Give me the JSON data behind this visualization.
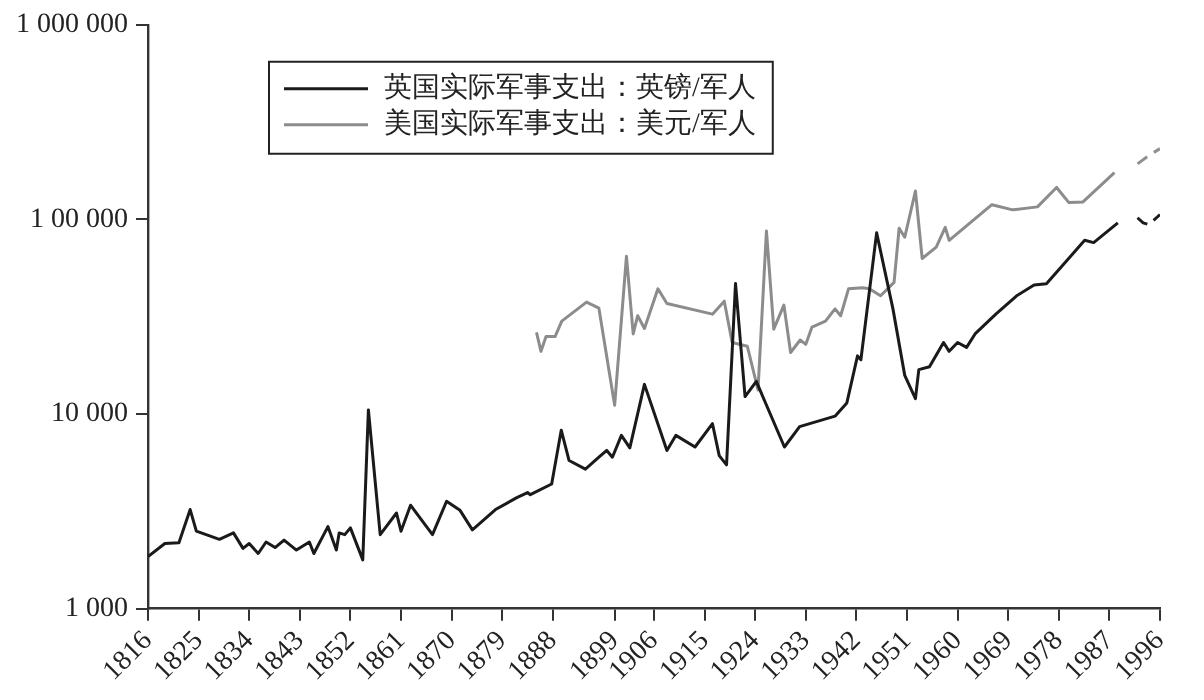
{
  "chart_data": {
    "type": "line",
    "log": "y",
    "grid": false,
    "legend": "top left",
    "marker": "none",
    "line_style": "solid",
    "xlim": [
      1816,
      1996
    ],
    "xticks": [
      1816,
      1825,
      1834,
      1843,
      1852,
      1861,
      1870,
      1879,
      1888,
      1899,
      1906,
      1915,
      1924,
      1933,
      1942,
      1951,
      1960,
      1969,
      1978,
      1987,
      1996
    ],
    "ylim": [
      1000,
      1000000
    ],
    "yticks": [
      {
        "value": 1000,
        "label": "1 000"
      },
      {
        "value": 10000,
        "label": "10 000"
      },
      {
        "value": 100000,
        "label": "1 00 000"
      },
      {
        "value": 1000000,
        "label": "1 000 000"
      }
    ],
    "series": [
      {
        "name": "英国实际军事支出：英镑/军人",
        "color": "#1a1a1a",
        "x": [
          1816,
          1819,
          1821.5,
          1823.5,
          1824.6,
          1828.7,
          1831.2,
          1832.9,
          1834,
          1835.6,
          1837,
          1838.6,
          1840.2,
          1842.4,
          1844.7,
          1845.5,
          1848,
          1849.5,
          1850,
          1851,
          1852,
          1854.2,
          1855.2,
          1857.3,
          1860.2,
          1861,
          1862.7,
          1866.6,
          1869.1,
          1871.5,
          1873.7,
          1877.8,
          1881.6,
          1883.5,
          1884,
          1887.8,
          1889.5,
          1890.9,
          1893.8,
          1896.2,
          1897.6,
          1898.6,
          1900.2,
          1901.7,
          1904.3,
          1908.3,
          1909.9,
          1913.3,
          1916.4,
          1917.6,
          1918.9,
          1920.5,
          1922.2,
          1924.2,
          1929.2,
          1931.9,
          1938.2,
          1940.3,
          1942.2,
          1942.8,
          1945.6,
          1948.5,
          1950.6,
          1952.5,
          1953.1,
          1955,
          1957.5,
          1958.5,
          1960,
          1961.6,
          1963.1,
          1966.8,
          1970.5,
          1973.6,
          1975.8,
          1982.6,
          1984.2,
          1988.5
        ],
        "values": [
          1850,
          2160,
          2180,
          3230,
          2500,
          2270,
          2450,
          2040,
          2160,
          1920,
          2200,
          2060,
          2250,
          2000,
          2200,
          1920,
          2640,
          2000,
          2450,
          2400,
          2600,
          1780,
          10500,
          2400,
          3100,
          2500,
          3400,
          2400,
          3560,
          3200,
          2540,
          3230,
          3720,
          3950,
          3850,
          4370,
          8260,
          5770,
          5210,
          6000,
          6500,
          6000,
          7770,
          6700,
          14200,
          6500,
          7770,
          6770,
          8920,
          6110,
          5480,
          46800,
          12300,
          14700,
          6770,
          8610,
          9750,
          11400,
          19900,
          19000,
          85300,
          34700,
          15800,
          12000,
          16900,
          17500,
          23300,
          21000,
          23300,
          22000,
          25800,
          32600,
          40500,
          46000,
          46700,
          78100,
          76000,
          96000
        ]
      },
      {
        "name": "美国实际军事支出：美元/军人",
        "color": "#8c8c8c",
        "x": [
          1885.1,
          1885.9,
          1886.8,
          1888.4,
          1889.6,
          1894,
          1896.2,
          1899,
          1901.1,
          1902.3,
          1903.1,
          1904.3,
          1906.7,
          1908.3,
          1916.4,
          1918.5,
          1919.9,
          1922.6,
          1924.5,
          1926,
          1927.3,
          1929.1,
          1930.3,
          1932,
          1933,
          1934.1,
          1936.5,
          1938.2,
          1939.2,
          1940.6,
          1943.1,
          1944.3,
          1946.3,
          1948.7,
          1949.6,
          1950.6,
          1952.5,
          1953.7,
          1956.2,
          1957.8,
          1958.5,
          1966.1,
          1969.8,
          1974.2,
          1977.6,
          1979.8,
          1982.3,
          1987.9
        ],
        "values": [
          26300,
          21000,
          25000,
          25000,
          30000,
          37600,
          35000,
          11100,
          64600,
          25800,
          32000,
          27500,
          44000,
          37000,
          32600,
          38000,
          23300,
          22300,
          13300,
          87300,
          27300,
          36300,
          20700,
          24000,
          22800,
          28000,
          30000,
          34700,
          32000,
          44000,
          44500,
          44000,
          40500,
          47500,
          90000,
          81000,
          140000,
          63000,
          72000,
          91000,
          78000,
          119000,
          112000,
          116000,
          146000,
          122000,
          123000,
          174000
        ]
      },
      {
        "color": "#1c1c1c",
        "line_style": "dashed",
        "x": [
          1992,
          1993,
          1994,
          1996
        ],
        "values": [
          102000,
          96000,
          94000,
          106000
        ]
      },
      {
        "color": "#909090",
        "line_style": "dashed",
        "x": [
          1992,
          1994,
          1996
        ],
        "values": [
          193000,
          213000,
          231000
        ]
      }
    ]
  }
}
